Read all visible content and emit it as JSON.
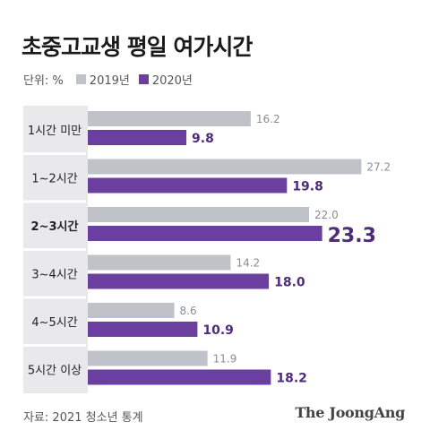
{
  "title": "초중고교생 평일 여가시간",
  "unit_label": "단위: %",
  "source": "자료: 2021 청소년 통계",
  "brand": "The JoongAng",
  "colors": {
    "series_2019": "#bfc3c9",
    "series_2020": "#6a3fa0",
    "category_panel": "#e9e9ec",
    "value_2019_text": "#8a8d93",
    "value_2020_text": "#4e2c7a"
  },
  "chart_data": {
    "type": "bar",
    "orientation": "horizontal",
    "categories": [
      "1시간 미만",
      "1~2시간",
      "2~3시간",
      "3~4시간",
      "4~5시간",
      "5시간 이상"
    ],
    "highlight_category": "2~3시간",
    "series": [
      {
        "name": "2019년",
        "values": [
          16.2,
          27.2,
          22.0,
          14.2,
          8.6,
          11.9
        ],
        "labels": [
          "16.2",
          "27.2",
          "22.0",
          "14.2",
          "8.6",
          "11.9"
        ]
      },
      {
        "name": "2020년",
        "values": [
          9.8,
          19.8,
          23.3,
          18.0,
          10.9,
          18.2
        ],
        "labels": [
          "9.8",
          "19.8",
          "23.3",
          "18.0",
          "10.9",
          "18.2"
        ]
      }
    ],
    "xlim": [
      0,
      28.5
    ],
    "legend": "top-left",
    "grid": false
  }
}
